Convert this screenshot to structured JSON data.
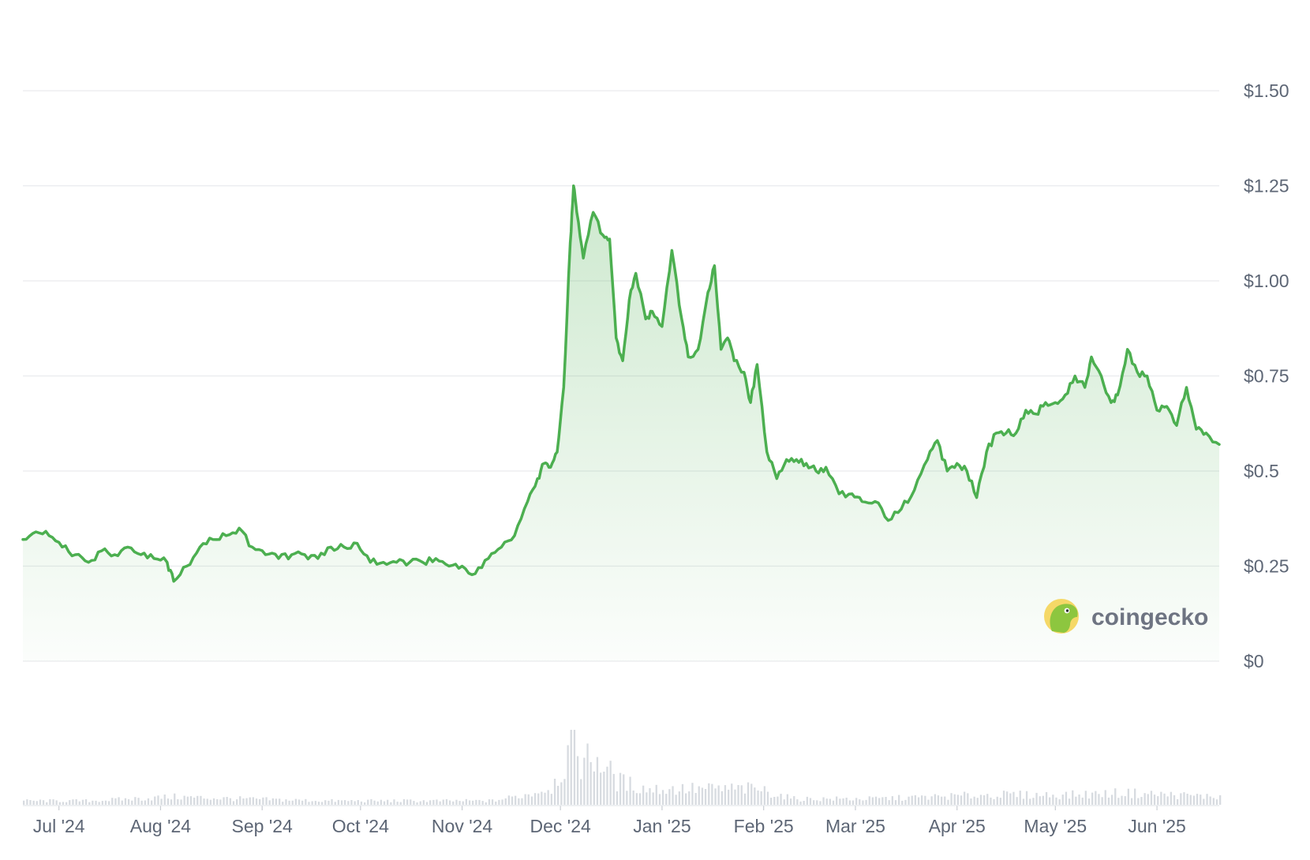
{
  "chart_data": {
    "type": "area",
    "title": "",
    "xlabel": "",
    "ylabel": "",
    "x_range": [
      "2024-06-20",
      "2025-06-20"
    ],
    "ylim": [
      0,
      1.5
    ],
    "y_ticks": [
      {
        "value": 0,
        "label": "$0"
      },
      {
        "value": 0.25,
        "label": "$0.25"
      },
      {
        "value": 0.5,
        "label": "$0.5"
      },
      {
        "value": 0.75,
        "label": "$0.75"
      },
      {
        "value": 1.0,
        "label": "$1.00"
      },
      {
        "value": 1.25,
        "label": "$1.25"
      },
      {
        "value": 1.5,
        "label": "$1.50"
      }
    ],
    "x_ticks": [
      {
        "date": "2024-07-01",
        "label": "Jul '24"
      },
      {
        "date": "2024-08-01",
        "label": "Aug '24"
      },
      {
        "date": "2024-09-01",
        "label": "Sep '24"
      },
      {
        "date": "2024-10-01",
        "label": "Oct '24"
      },
      {
        "date": "2024-11-01",
        "label": "Nov '24"
      },
      {
        "date": "2024-12-01",
        "label": "Dec '24"
      },
      {
        "date": "2025-01-01",
        "label": "Jan '25"
      },
      {
        "date": "2025-02-01",
        "label": "Feb '25"
      },
      {
        "date": "2025-03-01",
        "label": "Mar '25"
      },
      {
        "date": "2025-04-01",
        "label": "Apr '25"
      },
      {
        "date": "2025-05-01",
        "label": "May '25"
      },
      {
        "date": "2025-06-01",
        "label": "Jun '25"
      }
    ],
    "grid": true,
    "legend": "none",
    "line_color": "#4caf50",
    "fill_color": "#4caf50",
    "volume_color": "#d7dbe0",
    "series": [
      {
        "values": [
          [
            "2024-06-20",
            0.32
          ],
          [
            "2024-06-24",
            0.34
          ],
          [
            "2024-06-28",
            0.33
          ],
          [
            "2024-07-02",
            0.3
          ],
          [
            "2024-07-06",
            0.28
          ],
          [
            "2024-07-10",
            0.26
          ],
          [
            "2024-07-14",
            0.29
          ],
          [
            "2024-07-18",
            0.28
          ],
          [
            "2024-07-22",
            0.3
          ],
          [
            "2024-07-26",
            0.28
          ],
          [
            "2024-07-30",
            0.27
          ],
          [
            "2024-08-03",
            0.26
          ],
          [
            "2024-08-05",
            0.21
          ],
          [
            "2024-08-09",
            0.25
          ],
          [
            "2024-08-13",
            0.3
          ],
          [
            "2024-08-17",
            0.32
          ],
          [
            "2024-08-21",
            0.33
          ],
          [
            "2024-08-25",
            0.35
          ],
          [
            "2024-08-29",
            0.3
          ],
          [
            "2024-09-02",
            0.28
          ],
          [
            "2024-09-06",
            0.27
          ],
          [
            "2024-09-10",
            0.28
          ],
          [
            "2024-09-14",
            0.28
          ],
          [
            "2024-09-18",
            0.27
          ],
          [
            "2024-09-22",
            0.3
          ],
          [
            "2024-09-26",
            0.3
          ],
          [
            "2024-09-30",
            0.31
          ],
          [
            "2024-10-04",
            0.26
          ],
          [
            "2024-10-08",
            0.26
          ],
          [
            "2024-10-12",
            0.26
          ],
          [
            "2024-10-16",
            0.26
          ],
          [
            "2024-10-20",
            0.26
          ],
          [
            "2024-10-24",
            0.27
          ],
          [
            "2024-10-28",
            0.25
          ],
          [
            "2024-11-01",
            0.25
          ],
          [
            "2024-11-05",
            0.23
          ],
          [
            "2024-11-09",
            0.27
          ],
          [
            "2024-11-13",
            0.3
          ],
          [
            "2024-11-17",
            0.33
          ],
          [
            "2024-11-21",
            0.42
          ],
          [
            "2024-11-24",
            0.48
          ],
          [
            "2024-11-26",
            0.52
          ],
          [
            "2024-11-28",
            0.51
          ],
          [
            "2024-11-30",
            0.55
          ],
          [
            "2024-12-02",
            0.72
          ],
          [
            "2024-12-04",
            1.1
          ],
          [
            "2024-12-05",
            1.25
          ],
          [
            "2024-12-06",
            1.18
          ],
          [
            "2024-12-08",
            1.06
          ],
          [
            "2024-12-11",
            1.18
          ],
          [
            "2024-12-14",
            1.12
          ],
          [
            "2024-12-16",
            1.11
          ],
          [
            "2024-12-18",
            0.85
          ],
          [
            "2024-12-20",
            0.79
          ],
          [
            "2024-12-22",
            0.95
          ],
          [
            "2024-12-24",
            1.02
          ],
          [
            "2024-12-27",
            0.9
          ],
          [
            "2024-12-29",
            0.92
          ],
          [
            "2025-01-01",
            0.88
          ],
          [
            "2025-01-04",
            1.08
          ],
          [
            "2025-01-07",
            0.9
          ],
          [
            "2025-01-09",
            0.8
          ],
          [
            "2025-01-12",
            0.82
          ],
          [
            "2025-01-15",
            0.97
          ],
          [
            "2025-01-17",
            1.04
          ],
          [
            "2025-01-19",
            0.82
          ],
          [
            "2025-01-21",
            0.85
          ],
          [
            "2025-01-23",
            0.79
          ],
          [
            "2025-01-26",
            0.76
          ],
          [
            "2025-01-28",
            0.68
          ],
          [
            "2025-01-30",
            0.78
          ],
          [
            "2025-02-02",
            0.55
          ],
          [
            "2025-02-05",
            0.48
          ],
          [
            "2025-02-08",
            0.53
          ],
          [
            "2025-02-11",
            0.53
          ],
          [
            "2025-02-14",
            0.52
          ],
          [
            "2025-02-17",
            0.5
          ],
          [
            "2025-02-20",
            0.51
          ],
          [
            "2025-02-24",
            0.44
          ],
          [
            "2025-02-28",
            0.44
          ],
          [
            "2025-03-03",
            0.42
          ],
          [
            "2025-03-07",
            0.42
          ],
          [
            "2025-03-11",
            0.37
          ],
          [
            "2025-03-15",
            0.4
          ],
          [
            "2025-03-19",
            0.45
          ],
          [
            "2025-03-23",
            0.53
          ],
          [
            "2025-03-26",
            0.58
          ],
          [
            "2025-03-29",
            0.5
          ],
          [
            "2025-04-01",
            0.52
          ],
          [
            "2025-04-04",
            0.5
          ],
          [
            "2025-04-07",
            0.43
          ],
          [
            "2025-04-10",
            0.55
          ],
          [
            "2025-04-13",
            0.6
          ],
          [
            "2025-04-16",
            0.6
          ],
          [
            "2025-04-19",
            0.6
          ],
          [
            "2025-04-22",
            0.66
          ],
          [
            "2025-04-25",
            0.65
          ],
          [
            "2025-04-28",
            0.68
          ],
          [
            "2025-05-01",
            0.68
          ],
          [
            "2025-05-04",
            0.7
          ],
          [
            "2025-05-07",
            0.75
          ],
          [
            "2025-05-10",
            0.72
          ],
          [
            "2025-05-12",
            0.8
          ],
          [
            "2025-05-15",
            0.75
          ],
          [
            "2025-05-18",
            0.68
          ],
          [
            "2025-05-20",
            0.7
          ],
          [
            "2025-05-23",
            0.82
          ],
          [
            "2025-05-26",
            0.76
          ],
          [
            "2025-05-29",
            0.75
          ],
          [
            "2025-06-01",
            0.66
          ],
          [
            "2025-06-04",
            0.67
          ],
          [
            "2025-06-07",
            0.62
          ],
          [
            "2025-06-10",
            0.72
          ],
          [
            "2025-06-13",
            0.61
          ],
          [
            "2025-06-16",
            0.6
          ],
          [
            "2025-06-20",
            0.57
          ]
        ]
      }
    ],
    "volume": [
      [
        "2024-06-20",
        0.02
      ],
      [
        "2024-07-10",
        0.02
      ],
      [
        "2024-08-05",
        0.04
      ],
      [
        "2024-08-25",
        0.03
      ],
      [
        "2024-09-20",
        0.02
      ],
      [
        "2024-10-15",
        0.02
      ],
      [
        "2024-11-10",
        0.02
      ],
      [
        "2024-11-20",
        0.05
      ],
      [
        "2024-11-28",
        0.09
      ],
      [
        "2024-12-02",
        0.2
      ],
      [
        "2024-12-04",
        0.3
      ],
      [
        "2024-12-05",
        0.38
      ],
      [
        "2024-12-07",
        0.22
      ],
      [
        "2024-12-12",
        0.24
      ],
      [
        "2024-12-18",
        0.12
      ],
      [
        "2024-12-27",
        0.08
      ],
      [
        "2025-01-05",
        0.08
      ],
      [
        "2025-01-18",
        0.08
      ],
      [
        "2025-01-30",
        0.08
      ],
      [
        "2025-02-10",
        0.03
      ],
      [
        "2025-03-05",
        0.03
      ],
      [
        "2025-03-25",
        0.04
      ],
      [
        "2025-04-10",
        0.05
      ],
      [
        "2025-05-05",
        0.05
      ],
      [
        "2025-05-22",
        0.06
      ],
      [
        "2025-06-20",
        0.04
      ]
    ]
  },
  "watermark": {
    "brand": "coingecko",
    "logo_icon": "gecko-logo-icon"
  }
}
